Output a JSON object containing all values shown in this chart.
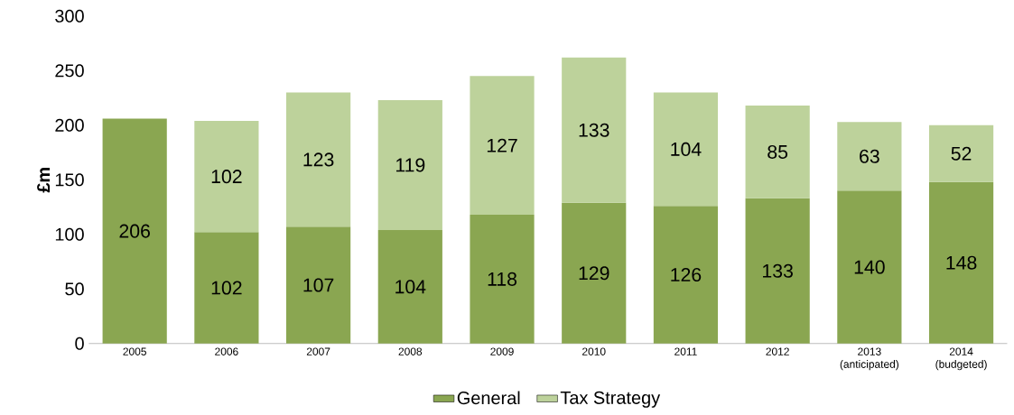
{
  "chart_data": {
    "type": "bar",
    "stacked": true,
    "ylabel": "£m",
    "categories": [
      "2005",
      "2006",
      "2007",
      "2008",
      "2009",
      "2010",
      "2011",
      "2012",
      "2013 (anticipated)",
      "2014 (budgeted)"
    ],
    "series": [
      {
        "name": "General",
        "color": "#8aa651",
        "values": [
          206,
          102,
          107,
          104,
          118,
          129,
          126,
          133,
          140,
          148
        ]
      },
      {
        "name": "Tax Strategy",
        "color": "#bdd29b",
        "values": [
          null,
          102,
          123,
          119,
          127,
          133,
          104,
          85,
          63,
          52
        ]
      }
    ],
    "ylim": [
      0,
      300
    ],
    "yticks": [
      0,
      50,
      100,
      150,
      200,
      250,
      300
    ],
    "data_labels": true,
    "legend": "bottom",
    "grid": false
  }
}
